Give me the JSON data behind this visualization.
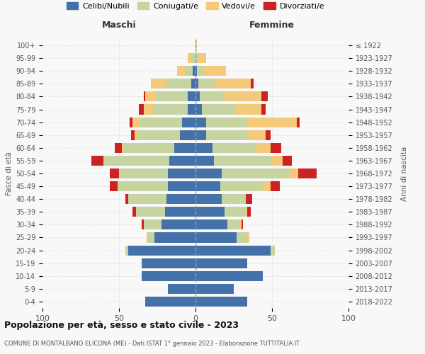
{
  "age_groups": [
    "0-4",
    "5-9",
    "10-14",
    "15-19",
    "20-24",
    "25-29",
    "30-34",
    "35-39",
    "40-44",
    "45-49",
    "50-54",
    "55-59",
    "60-64",
    "65-69",
    "70-74",
    "75-79",
    "80-84",
    "85-89",
    "90-94",
    "95-99",
    "100+"
  ],
  "birth_years": [
    "2018-2022",
    "2013-2017",
    "2008-2012",
    "2003-2007",
    "1998-2002",
    "1993-1997",
    "1988-1992",
    "1983-1987",
    "1978-1982",
    "1973-1977",
    "1968-1972",
    "1963-1967",
    "1958-1962",
    "1953-1957",
    "1948-1952",
    "1943-1947",
    "1938-1942",
    "1933-1937",
    "1928-1932",
    "1923-1927",
    "≤ 1922"
  ],
  "male": {
    "celibi": [
      33,
      18,
      35,
      35,
      44,
      27,
      22,
      20,
      19,
      18,
      18,
      17,
      14,
      10,
      9,
      5,
      5,
      3,
      2,
      0,
      0
    ],
    "coniugati": [
      0,
      0,
      0,
      0,
      2,
      4,
      12,
      19,
      25,
      33,
      32,
      43,
      33,
      28,
      28,
      23,
      21,
      16,
      5,
      3,
      0
    ],
    "vedovi": [
      0,
      0,
      0,
      0,
      0,
      1,
      0,
      0,
      0,
      0,
      0,
      0,
      1,
      2,
      4,
      6,
      7,
      10,
      5,
      2,
      0
    ],
    "divorziati": [
      0,
      0,
      0,
      0,
      0,
      0,
      1,
      2,
      2,
      5,
      6,
      8,
      5,
      2,
      2,
      3,
      1,
      0,
      0,
      0,
      0
    ]
  },
  "female": {
    "celibi": [
      34,
      25,
      44,
      34,
      49,
      27,
      21,
      19,
      17,
      16,
      17,
      12,
      11,
      7,
      7,
      4,
      3,
      2,
      1,
      0,
      0
    ],
    "coniugati": [
      0,
      0,
      0,
      0,
      3,
      7,
      8,
      14,
      16,
      28,
      44,
      38,
      29,
      27,
      27,
      22,
      16,
      11,
      4,
      2,
      0
    ],
    "vedovi": [
      0,
      0,
      0,
      0,
      0,
      1,
      1,
      1,
      0,
      5,
      6,
      7,
      9,
      12,
      32,
      17,
      24,
      23,
      15,
      5,
      1
    ],
    "divorziati": [
      0,
      0,
      0,
      0,
      0,
      0,
      1,
      2,
      4,
      6,
      12,
      6,
      7,
      3,
      2,
      3,
      4,
      2,
      0,
      0,
      0
    ]
  },
  "colors": {
    "celibi": "#4472a8",
    "coniugati": "#c5d4a0",
    "vedovi": "#f5c97a",
    "divorziati": "#cc2222"
  },
  "xlim": 100,
  "title": "Popolazione per età, sesso e stato civile - 2023",
  "subtitle": "COMUNE DI MONTALBANO ELICONA (ME) - Dati ISTAT 1° gennaio 2023 - Elaborazione TUTTITALIA.IT",
  "ylabel_left": "Fasce di età",
  "ylabel_right": "Anni di nascita",
  "xlabel_left": "Maschi",
  "xlabel_right": "Femmine",
  "legend_labels": [
    "Celibi/Nubili",
    "Coniugati/e",
    "Vedovi/e",
    "Divorziati/e"
  ],
  "bg_color": "#f8f8f8"
}
